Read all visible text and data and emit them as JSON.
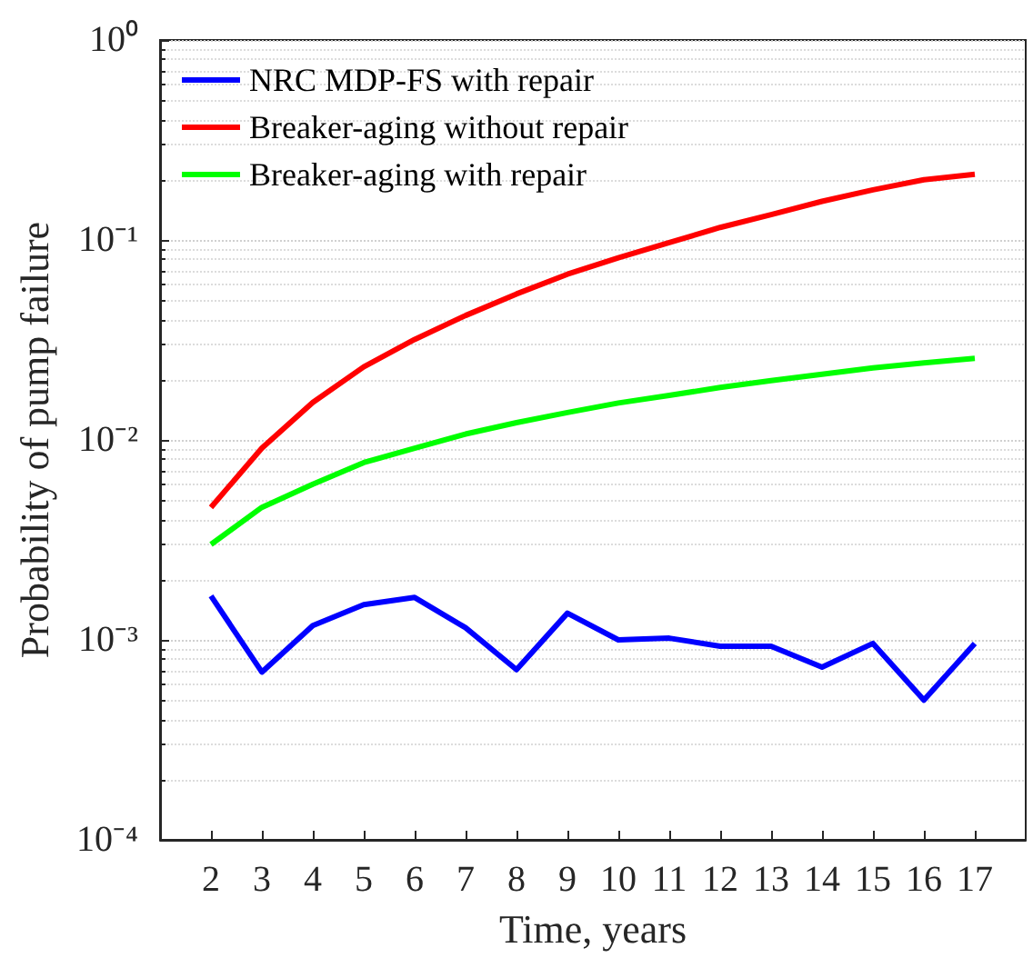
{
  "chart_data": {
    "type": "line",
    "xlabel": "Time, years",
    "ylabel": "Probability of pump failure",
    "x": [
      2,
      3,
      4,
      5,
      6,
      7,
      8,
      9,
      10,
      11,
      12,
      13,
      14,
      15,
      16,
      17
    ],
    "series": [
      {
        "name": "NRC MDP-FS with repair",
        "color": "#0000ff",
        "values": [
          0.00166,
          0.00069,
          0.00118,
          0.0015,
          0.00163,
          0.00115,
          0.00071,
          0.00136,
          0.001,
          0.00102,
          0.00093,
          0.00093,
          0.00073,
          0.00096,
          0.0005,
          0.00096
        ]
      },
      {
        "name": "Breaker-aging without repair",
        "color": "#ff0000",
        "values": [
          0.0046,
          0.0091,
          0.0154,
          0.0232,
          0.0318,
          0.0419,
          0.0537,
          0.0674,
          0.0815,
          0.097,
          0.1155,
          0.134,
          0.156,
          0.178,
          0.2,
          0.213
        ]
      },
      {
        "name": "Breaker-aging with repair",
        "color": "#00ff00",
        "values": [
          0.003,
          0.0046,
          0.006,
          0.0077,
          0.0091,
          0.0107,
          0.0122,
          0.0137,
          0.0153,
          0.0167,
          0.0183,
          0.0198,
          0.0213,
          0.0229,
          0.0243,
          0.0256
        ]
      }
    ],
    "xlim": [
      1,
      18
    ],
    "xticks": [
      2,
      3,
      4,
      5,
      6,
      7,
      8,
      9,
      10,
      11,
      12,
      13,
      14,
      15,
      16,
      17
    ],
    "ylim": [
      0.0001,
      1
    ],
    "yticks": [
      {
        "value": 0.0001,
        "label": "10⁻⁴"
      },
      {
        "value": 0.001,
        "label": "10⁻³"
      },
      {
        "value": 0.01,
        "label": "10⁻²"
      },
      {
        "value": 0.1,
        "label": "10⁻¹"
      },
      {
        "value": 1,
        "label": "10⁰"
      }
    ],
    "log": "y",
    "grid": "y",
    "legend": "top left",
    "marker": "none",
    "line_style": "solid"
  }
}
